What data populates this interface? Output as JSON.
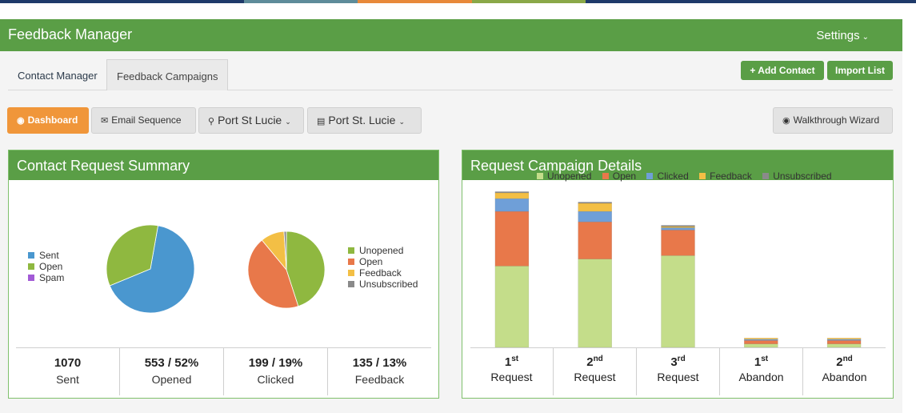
{
  "colors": {
    "stripe": [
      "#1f3a6a",
      "#5e8c9a",
      "#e8893a",
      "#8aa848",
      "#1f3a6a"
    ],
    "green": "#5a9e46",
    "orange": "#f0963a"
  },
  "header": {
    "title": "Feedback Manager",
    "settings_label": "Settings"
  },
  "tabs": [
    {
      "label": "Contact Manager"
    },
    {
      "label": "Feedback Campaigns"
    }
  ],
  "actions": {
    "add_contact": "+ Add Contact",
    "import_list": "Import List"
  },
  "toolbar": {
    "dashboard": "Dashboard",
    "email_sequence": "Email Sequence",
    "location_1": "Port St Lucie",
    "location_2": "Port St. Lucie",
    "walkthrough": "Walkthrough Wizard"
  },
  "summary_panel": {
    "title": "Contact Request Summary",
    "legend_left": [
      {
        "label": "Sent",
        "color": "#4a97cf"
      },
      {
        "label": "Open",
        "color": "#8fb840"
      },
      {
        "label": "Spam",
        "color": "#a25ad6"
      }
    ],
    "legend_right": [
      {
        "label": "Unopened",
        "color": "#8fb840"
      },
      {
        "label": "Open",
        "color": "#e8784a"
      },
      {
        "label": "Feedback",
        "color": "#f3bf45"
      },
      {
        "label": "Unsubscribed",
        "color": "#8a8a8a"
      }
    ],
    "stats": [
      {
        "value": "1070",
        "label": "Sent"
      },
      {
        "value": "553 / 52%",
        "label": "Opened"
      },
      {
        "value": "199 / 19%",
        "label": "Clicked"
      },
      {
        "value": "135 / 13%",
        "label": "Feedback"
      }
    ]
  },
  "campaign_panel": {
    "title": "Request Campaign Details",
    "legend": [
      {
        "label": "Unopened",
        "color": "#c4dd8a"
      },
      {
        "label": "Open",
        "color": "#e8784a"
      },
      {
        "label": "Clicked",
        "color": "#6f9fd8"
      },
      {
        "label": "Feedback",
        "color": "#f3bf45"
      },
      {
        "label": "Unsubscribed",
        "color": "#8a8a8a"
      }
    ],
    "categories": [
      {
        "ord": "1",
        "sup": "st",
        "caption": "Request"
      },
      {
        "ord": "2",
        "sup": "nd",
        "caption": "Request"
      },
      {
        "ord": "3",
        "sup": "rd",
        "caption": "Request"
      },
      {
        "ord": "1",
        "sup": "st",
        "caption": "Abandon"
      },
      {
        "ord": "2",
        "sup": "nd",
        "caption": "Abandon"
      }
    ]
  },
  "chart_data": [
    {
      "type": "pie",
      "labels": [
        "Sent",
        "Open",
        "Spam"
      ],
      "values": [
        66,
        34,
        0
      ],
      "colors": [
        "#4a97cf",
        "#8fb840",
        "#a25ad6"
      ]
    },
    {
      "type": "pie",
      "labels": [
        "Unopened",
        "Open",
        "Feedback",
        "Unsubscribed"
      ],
      "values": [
        45,
        44,
        10,
        1
      ],
      "colors": [
        "#8fb840",
        "#e8784a",
        "#f3bf45",
        "#8a8a8a"
      ]
    },
    {
      "type": "bar",
      "stacked": true,
      "categories": [
        "1st Request",
        "2nd Request",
        "3rd Request",
        "1st Abandon",
        "2nd Abandon"
      ],
      "series": [
        {
          "name": "Unopened",
          "values": [
            70,
            76,
            79,
            3,
            3
          ],
          "color": "#c4dd8a"
        },
        {
          "name": "Open",
          "values": [
            47,
            32,
            22,
            3,
            3
          ],
          "color": "#e8784a"
        },
        {
          "name": "Clicked",
          "values": [
            11,
            9,
            2,
            1,
            1
          ],
          "color": "#6f9fd8"
        },
        {
          "name": "Feedback",
          "values": [
            5,
            7,
            1,
            1,
            1
          ],
          "color": "#f3bf45"
        },
        {
          "name": "Unsubscribed",
          "values": [
            1,
            1,
            1,
            0,
            0
          ],
          "color": "#8a8a8a"
        }
      ],
      "ylim": [
        0,
        135
      ]
    }
  ]
}
